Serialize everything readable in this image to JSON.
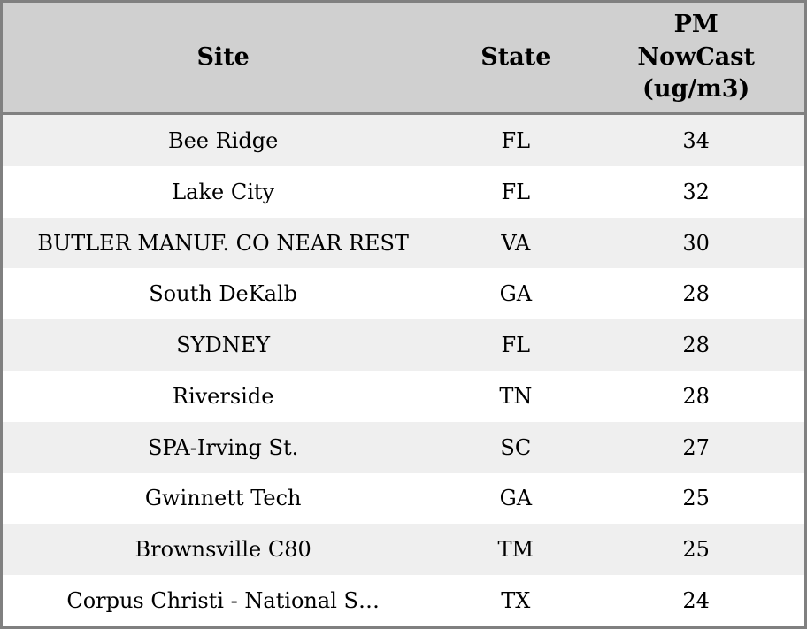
{
  "table": {
    "headers": {
      "site": "Site",
      "state": "State",
      "pm": "PM\nNowCast\n(ug/m3)"
    },
    "rows": [
      {
        "site": "Bee Ridge",
        "state": "FL",
        "pm": "34"
      },
      {
        "site": "Lake City",
        "state": "FL",
        "pm": "32"
      },
      {
        "site": "BUTLER MANUF. CO NEAR REST",
        "state": "VA",
        "pm": "30"
      },
      {
        "site": "South DeKalb",
        "state": "GA",
        "pm": "28"
      },
      {
        "site": "SYDNEY",
        "state": "FL",
        "pm": "28"
      },
      {
        "site": "Riverside",
        "state": "TN",
        "pm": "28"
      },
      {
        "site": "SPA-Irving St.",
        "state": "SC",
        "pm": "27"
      },
      {
        "site": "Gwinnett Tech",
        "state": "GA",
        "pm": "25"
      },
      {
        "site": "Brownsville C80",
        "state": "TM",
        "pm": "25"
      },
      {
        "site": "Corpus Christi - National S…",
        "state": "TX",
        "pm": "24"
      }
    ],
    "colors": {
      "header_bg": "#d0d0d0",
      "row_alt_bg": "#efefef",
      "row_bg": "#ffffff",
      "border": "#808080",
      "text": "#000000"
    }
  },
  "chart_data": {
    "type": "table",
    "title": "",
    "columns": [
      "Site",
      "State",
      "PM NowCast (ug/m3)"
    ],
    "categories": [
      "Bee Ridge",
      "Lake City",
      "BUTLER MANUF. CO NEAR REST",
      "South DeKalb",
      "SYDNEY",
      "Riverside",
      "SPA-Irving St.",
      "Gwinnett Tech",
      "Brownsville C80",
      "Corpus Christi - National S…"
    ],
    "states": [
      "FL",
      "FL",
      "VA",
      "GA",
      "FL",
      "TN",
      "SC",
      "GA",
      "TM",
      "TX"
    ],
    "values": [
      34,
      32,
      30,
      28,
      28,
      28,
      27,
      25,
      25,
      24
    ],
    "value_label": "PM NowCast (ug/m3)"
  }
}
